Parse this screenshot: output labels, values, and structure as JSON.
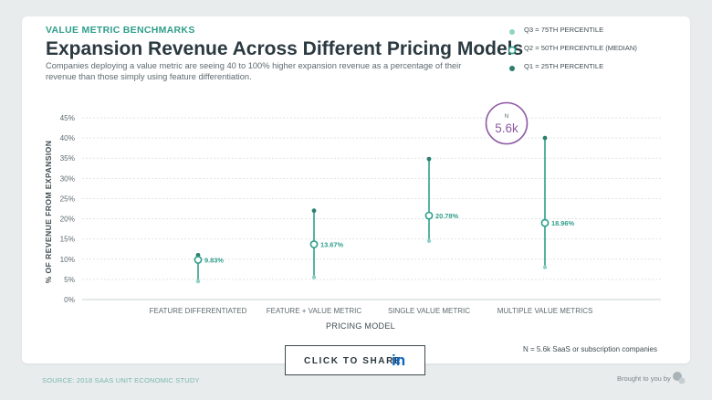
{
  "header": {
    "eyebrow": "VALUE METRIC BENCHMARKS",
    "title": "Expansion Revenue Across Different Pricing Models",
    "subtitle": "Companies deploying a value metric are seeing 40 to 100% higher expansion revenue as a percentage of their revenue than those simply using feature differentiation."
  },
  "legend": {
    "q3": "Q3 = 75TH PERCENTILE",
    "q2": "Q2 = 50TH PERCENTILE (MEDIAN)",
    "q1": "Q1 = 25TH PERCENTILE"
  },
  "badge": {
    "label": "N",
    "value": "5.6k"
  },
  "note": "N = 5.6k SaaS or subscription companies",
  "share": {
    "label": "CLICK TO SHARE",
    "icon": "linkedin-icon",
    "icon_text": "in"
  },
  "footer": {
    "source": "SOURCE: 2018 SAAS UNIT ECONOMIC STUDY",
    "brought": "Brought to you by",
    "logo": "profitwell-logo-icon"
  },
  "colors": {
    "accent": "#2f9e8a",
    "q1": "#2a7f6f",
    "q3": "#8fd3c6",
    "badge": "#8e5aa3",
    "title": "#2b3940"
  },
  "chart_data": {
    "type": "range",
    "xlabel": "PRICING MODEL",
    "ylabel": "% OF REVENUE FROM EXPANSION",
    "ylim": [
      0,
      45
    ],
    "yticks": [
      "0%",
      "5%",
      "10%",
      "15%",
      "20%",
      "25%",
      "30%",
      "35%",
      "40%",
      "45%"
    ],
    "grid": true,
    "legend_position": "top-right",
    "categories": [
      "FEATURE DIFFERENTIATED",
      "FEATURE + VALUE METRIC",
      "SINGLE VALUE METRIC",
      "MULTIPLE VALUE METRICS"
    ],
    "series": [
      {
        "name": "Q3 = 75TH PERCENTILE",
        "values": [
          11.0,
          22.0,
          34.8,
          40.0
        ]
      },
      {
        "name": "Q2 = 50TH PERCENTILE (MEDIAN)",
        "values": [
          9.83,
          13.67,
          20.78,
          18.96
        ]
      },
      {
        "name": "Q1 = 25TH PERCENTILE",
        "values": [
          4.5,
          5.5,
          14.5,
          8.0
        ]
      }
    ],
    "median_labels": [
      "9.83%",
      "13.67%",
      "20.78%",
      "18.96%"
    ]
  }
}
